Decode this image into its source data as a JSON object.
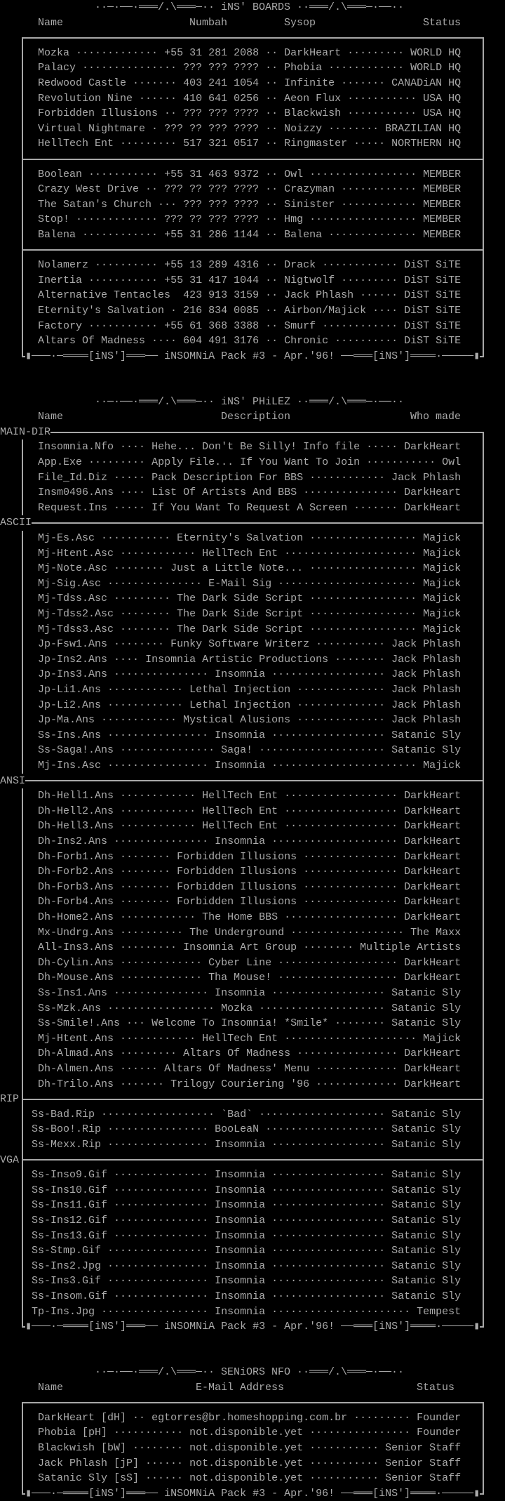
{
  "colors": {
    "background": "#000000",
    "text": "#aaaaaa",
    "lines": "#a8a8a8"
  },
  "ornament": {
    "left": "··─·──·═══/.\\═══─··",
    "right": "··═══/.\\═══─·──··"
  },
  "footer": {
    "ornament_left": "▮───·─════",
    "tag": "[iNS']",
    "mid_left": "═══──",
    "text": "iNSOMNiA Pack #3 - Apr.'96!",
    "mid_right": "──═══",
    "ornament_right": "════·─────▮"
  },
  "boards": {
    "title": "iNS' BOARDS",
    "columns": {
      "name": "Name",
      "number": "Numbah",
      "sysop": "Sysop",
      "status": "Status"
    },
    "groups": [
      [
        {
          "name": "Mozka",
          "number": "+55 31 281 2088",
          "sysop": "DarkHeart",
          "status": "WORLD HQ"
        },
        {
          "name": "Palacy",
          "number": "??? ??? ????",
          "sysop": "Phobia",
          "status": "WORLD HQ"
        },
        {
          "name": "Redwood Castle",
          "number": "403 241 1054",
          "sysop": "Infinite",
          "status": "CANADiAN HQ"
        },
        {
          "name": "Revolution Nine",
          "number": "410 641 0256",
          "sysop": "Aeon Flux",
          "status": "USA HQ"
        },
        {
          "name": "Forbidden Illusions",
          "number": "??? ??? ????",
          "sysop": "Blackwish",
          "status": "USA HQ"
        },
        {
          "name": "Virtual Nightmare",
          "number": "??? ?? ??? ????",
          "sysop": "Noizzy",
          "status": "BRAZILIAN HQ"
        },
        {
          "name": "HellTech Ent",
          "number": "517 321 0517",
          "sysop": "Ringmaster",
          "status": "NORTHERN HQ"
        }
      ],
      [
        {
          "name": "Boolean",
          "number": "+55 31 463 9372",
          "sysop": "Owl",
          "status": "MEMBER"
        },
        {
          "name": "Crazy West Drive",
          "number": "??? ?? ??? ????",
          "sysop": "Crazyman",
          "status": "MEMBER"
        },
        {
          "name": "The Satan's Church",
          "number": "??? ??? ????",
          "sysop": "Sinister",
          "status": "MEMBER"
        },
        {
          "name": "Stop!",
          "number": "??? ?? ??? ????",
          "sysop": "Hmg",
          "status": "MEMBER"
        },
        {
          "name": "Balena",
          "number": "+55 31 286 1144",
          "sysop": "Balena",
          "status": "MEMBER"
        }
      ],
      [
        {
          "name": "Nolamerz",
          "number": "+55 13 289 4316",
          "sysop": "Drack",
          "status": "DiST SiTE"
        },
        {
          "name": "Inertia",
          "number": "+55 31 417 1044",
          "sysop": "Nigtwolf",
          "status": "DiST SiTE"
        },
        {
          "name": "Alternative Tentacles",
          "number": "423 913 3159",
          "sysop": "Jack Phlash",
          "status": "DiST SiTE"
        },
        {
          "name": "Eternity's Salvation",
          "number": "216 834 0085",
          "sysop": "Airbon/Majick",
          "status": "DiST SiTE"
        },
        {
          "name": "Factory",
          "number": "+55 61 368 3388",
          "sysop": "Smurf",
          "status": "DiST SiTE"
        },
        {
          "name": "Altars Of Madness",
          "number": "604 491 3176",
          "sysop": "Chronic",
          "status": "DiST SiTE"
        }
      ]
    ]
  },
  "philez": {
    "title": "iNS' PHiLEZ",
    "columns": {
      "name": "Name",
      "description": "Description",
      "author": "Who made"
    },
    "sections": [
      {
        "label": "MAIN-DIR",
        "files": [
          {
            "name": "Insomnia.Nfo",
            "description": "Hehe... Don't Be Silly! Info file",
            "author": "DarkHeart"
          },
          {
            "name": "App.Exe",
            "description": "Apply File... If You Want To Join",
            "author": "Owl"
          },
          {
            "name": "File_Id.Diz",
            "description": "Pack Description For BBS",
            "author": "Jack Phlash"
          },
          {
            "name": "Insm0496.Ans",
            "description": "List Of Artists And BBS",
            "author": "DarkHeart"
          },
          {
            "name": "Request.Ins",
            "description": "If You Want To Request A Screen",
            "author": "DarkHeart"
          }
        ]
      },
      {
        "label": "ASCII",
        "files": [
          {
            "name": "Mj-Es.Asc",
            "description": "Eternity's Salvation",
            "author": "Majick"
          },
          {
            "name": "Mj-Htent.Asc",
            "description": "HellTech Ent",
            "author": "Majick"
          },
          {
            "name": "Mj-Note.Asc",
            "description": "Just a Little Note...",
            "author": "Majick"
          },
          {
            "name": "Mj-Sig.Asc",
            "description": "E-Mail Sig",
            "author": "Majick"
          },
          {
            "name": "Mj-Tdss.Asc",
            "description": "The Dark Side Script",
            "author": "Majick"
          },
          {
            "name": "Mj-Tdss2.Asc",
            "description": "The Dark Side Script",
            "author": "Majick"
          },
          {
            "name": "Mj-Tdss3.Asc",
            "description": "The Dark Side Script",
            "author": "Majick"
          },
          {
            "name": "Jp-Fsw1.Ans",
            "description": "Funky Software Writerz",
            "author": "Jack Phlash"
          },
          {
            "name": "Jp-Ins2.Ans",
            "description": "Insomnia Artistic Productions",
            "author": "Jack Phlash"
          },
          {
            "name": "Jp-Ins3.Ans",
            "description": "Insomnia",
            "author": "Jack Phlash"
          },
          {
            "name": "Jp-Li1.Ans",
            "description": "Lethal Injection",
            "author": "Jack Phlash"
          },
          {
            "name": "Jp-Li2.Ans",
            "description": "Lethal Injection",
            "author": "Jack Phlash"
          },
          {
            "name": "Jp-Ma.Ans",
            "description": "Mystical Alusions",
            "author": "Jack Phlash"
          },
          {
            "name": "Ss-Ins.Ans",
            "description": "Insomnia",
            "author": "Satanic Sly"
          },
          {
            "name": "Ss-Saga!.Ans",
            "description": "Saga!",
            "author": "Satanic Sly"
          },
          {
            "name": "Mj-Ins.Asc",
            "description": "Insomnia",
            "author": "Majick"
          }
        ]
      },
      {
        "label": "ANSI",
        "files": [
          {
            "name": "Dh-Hell1.Ans",
            "description": "HellTech Ent",
            "author": "DarkHeart"
          },
          {
            "name": "Dh-Hell2.Ans",
            "description": "HellTech Ent",
            "author": "DarkHeart"
          },
          {
            "name": "Dh-Hell3.Ans",
            "description": "HellTech Ent",
            "author": "DarkHeart"
          },
          {
            "name": "Dh-Ins2.Ans",
            "description": "Insomnia",
            "author": "DarkHeart"
          },
          {
            "name": "Dh-Forb1.Ans",
            "description": "Forbidden Illusions",
            "author": "DarkHeart"
          },
          {
            "name": "Dh-Forb2.Ans",
            "description": "Forbidden Illusions",
            "author": "DarkHeart"
          },
          {
            "name": "Dh-Forb3.Ans",
            "description": "Forbidden Illusions",
            "author": "DarkHeart"
          },
          {
            "name": "Dh-Forb4.Ans",
            "description": "Forbidden Illusions",
            "author": "DarkHeart"
          },
          {
            "name": "Dh-Home2.Ans",
            "description": "The Home BBS",
            "author": "DarkHeart"
          },
          {
            "name": "Mx-Undrg.Ans",
            "description": "The Underground",
            "author": "The Maxx"
          },
          {
            "name": "All-Ins3.Ans",
            "description": "Insomnia Art Group",
            "author": "Multiple Artists"
          },
          {
            "name": "Dh-Cylin.Ans",
            "description": "Cyber Line",
            "author": "DarkHeart"
          },
          {
            "name": "Dh-Mouse.Ans",
            "description": "Tha Mouse!",
            "author": "DarkHeart"
          },
          {
            "name": "Ss-Ins1.Ans",
            "description": "Insomnia",
            "author": "Satanic Sly"
          },
          {
            "name": "Ss-Mzk.Ans",
            "description": "Mozka",
            "author": "Satanic Sly"
          },
          {
            "name": "Ss-Smile!.Ans",
            "description": "Welcome To Insomnia! *Smile*",
            "author": "Satanic Sly"
          },
          {
            "name": "Mj-Htent.Ans",
            "description": "HellTech Ent",
            "author": "Majick"
          },
          {
            "name": "Dh-Almad.Ans",
            "description": "Altars Of Madness",
            "author": "DarkHeart"
          },
          {
            "name": "Dh-Almen.Ans",
            "description": "Altars Of Madness' Menu",
            "author": "DarkHeart"
          },
          {
            "name": "Dh-Trilo.Ans",
            "description": "Trilogy Couriering '96",
            "author": "DarkHeart"
          }
        ]
      },
      {
        "label": "RIP",
        "files": [
          {
            "name": "Ss-Bad.Rip",
            "description": "`Bad`",
            "author": "Satanic Sly"
          },
          {
            "name": "Ss-Boo!.Rip",
            "description": "BooLeaN",
            "author": "Satanic Sly"
          },
          {
            "name": "Ss-Mexx.Rip",
            "description": "Insomnia",
            "author": "Satanic Sly"
          }
        ]
      },
      {
        "label": "VGA",
        "files": [
          {
            "name": "Ss-Inso9.Gif",
            "description": "Insomnia",
            "author": "Satanic Sly"
          },
          {
            "name": "Ss-Ins10.Gif",
            "description": "Insomnia",
            "author": "Satanic Sly"
          },
          {
            "name": "Ss-Ins11.Gif",
            "description": "Insomnia",
            "author": "Satanic Sly"
          },
          {
            "name": "Ss-Ins12.Gif",
            "description": "Insomnia",
            "author": "Satanic Sly"
          },
          {
            "name": "Ss-Ins13.Gif",
            "description": "Insomnia",
            "author": "Satanic Sly"
          },
          {
            "name": "Ss-Stmp.Gif",
            "description": "Insomnia",
            "author": "Satanic Sly"
          },
          {
            "name": "Ss-Ins2.Jpg",
            "description": "Insomnia",
            "author": "Satanic Sly"
          },
          {
            "name": "Ss-Ins3.Gif",
            "description": "Insomnia",
            "author": "Satanic Sly"
          },
          {
            "name": "Ss-Insom.Gif",
            "description": "Insomnia",
            "author": "Satanic Sly"
          },
          {
            "name": "Tp-Ins.Jpg",
            "description": "Insomnia",
            "author": "Tempest"
          }
        ]
      }
    ]
  },
  "seniors": {
    "title": "SENiORS NFO",
    "columns": {
      "name": "Name",
      "email": "E-Mail Address",
      "status": "Status"
    },
    "members": [
      {
        "name": "DarkHeart [dH]",
        "email": "egtorres@br.homeshopping.com.br",
        "status": "Founder"
      },
      {
        "name": "Phobia [pH]",
        "email": "not.disponible.yet",
        "status": "Founder"
      },
      {
        "name": "Blackwish [bW]",
        "email": "not.disponible.yet",
        "status": "Senior Staff"
      },
      {
        "name": "Jack Phlash [jP]",
        "email": "not.disponible.yet",
        "status": "Senior Staff"
      },
      {
        "name": "Satanic Sly [sS]",
        "email": "not.disponible.yet",
        "status": "Senior Staff"
      }
    ]
  }
}
